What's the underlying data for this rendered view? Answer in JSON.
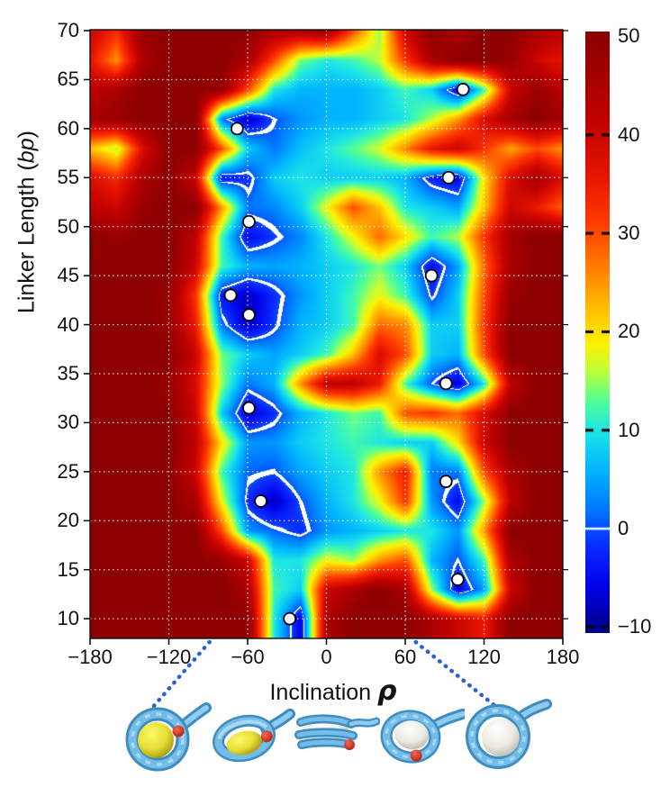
{
  "chart_data": {
    "type": "heatmap",
    "title": "",
    "xlabel": {
      "text": "Inclination ",
      "symbol": "ρ"
    },
    "ylabel": {
      "prefix": "Linker Length (",
      "italic": "bp",
      "suffix": ")"
    },
    "x": {
      "min": -180,
      "max": 180,
      "ticks": [
        -180,
        -120,
        -60,
        0,
        60,
        120,
        180
      ],
      "gridlines": [
        -120,
        -60,
        0,
        60,
        120
      ]
    },
    "y": {
      "min": 8,
      "max": 70.1,
      "ticks": [
        70,
        65,
        60,
        55,
        50,
        45,
        40,
        35,
        30,
        25,
        20,
        15,
        10
      ],
      "gridlines": [
        65,
        60,
        55,
        50,
        45,
        40,
        35,
        30,
        25,
        20,
        15,
        10
      ]
    },
    "grid_style": "white-dotted",
    "colorbar": {
      "min": -10,
      "max": 50,
      "ticks": [
        50,
        40,
        30,
        20,
        10,
        0,
        -10
      ],
      "zero_tick_style": "white-solid-line",
      "tick_style": "black-dashed"
    },
    "contour_level": 0,
    "contour_color": "#ffffff",
    "colormap_anchors": [
      [
        -10,
        0,
        0,
        140
      ],
      [
        -6,
        0,
        0,
        230
      ],
      [
        -2,
        10,
        40,
        255
      ],
      [
        2,
        0,
        120,
        255
      ],
      [
        6,
        0,
        180,
        255
      ],
      [
        10,
        30,
        230,
        230
      ],
      [
        13,
        80,
        255,
        150
      ],
      [
        16,
        190,
        255,
        60
      ],
      [
        19,
        255,
        240,
        0
      ],
      [
        23,
        255,
        180,
        0
      ],
      [
        27,
        255,
        120,
        0
      ],
      [
        31,
        255,
        60,
        0
      ],
      [
        36,
        230,
        20,
        0
      ],
      [
        42,
        190,
        0,
        0
      ],
      [
        50,
        140,
        0,
        0
      ]
    ],
    "grid": {
      "rho": [
        -180,
        -160,
        -140,
        -120,
        -100,
        -80,
        -60,
        -40,
        -20,
        0,
        20,
        40,
        60,
        80,
        100,
        120,
        140,
        160,
        180
      ],
      "linker": [
        70,
        67,
        64,
        61,
        58,
        55,
        52,
        49,
        46,
        43,
        40,
        37,
        34,
        31,
        28,
        25,
        22,
        19,
        16,
        13,
        10
      ],
      "values": [
        [
          40,
          33,
          48,
          50,
          50,
          50,
          50,
          45,
          45,
          48,
          30,
          15,
          40,
          50,
          45,
          50,
          50,
          45,
          42
        ],
        [
          36,
          25,
          45,
          50,
          50,
          50,
          45,
          30,
          14,
          10,
          12,
          16,
          32,
          45,
          50,
          50,
          48,
          40,
          36
        ],
        [
          42,
          45,
          50,
          50,
          50,
          48,
          30,
          10,
          6,
          6,
          6,
          8,
          12,
          8,
          -6,
          12,
          40,
          48,
          42
        ],
        [
          46,
          48,
          50,
          50,
          50,
          2,
          -8,
          0,
          4,
          6,
          6,
          8,
          10,
          16,
          25,
          38,
          46,
          50,
          46
        ],
        [
          22,
          16,
          38,
          50,
          50,
          30,
          8,
          2,
          7,
          10,
          13,
          17,
          26,
          36,
          40,
          32,
          24,
          30,
          25
        ],
        [
          38,
          33,
          45,
          50,
          40,
          -4,
          -2,
          8,
          10,
          8,
          8,
          8,
          6,
          -3,
          -6,
          20,
          38,
          46,
          38
        ],
        [
          42,
          40,
          48,
          50,
          50,
          25,
          2,
          3,
          8,
          18,
          30,
          22,
          10,
          8,
          5,
          22,
          40,
          35,
          28
        ],
        [
          50,
          48,
          50,
          50,
          42,
          12,
          -5,
          -1,
          3,
          10,
          18,
          28,
          20,
          12,
          16,
          32,
          46,
          50,
          50
        ],
        [
          50,
          50,
          50,
          50,
          40,
          12,
          6,
          5,
          6,
          8,
          10,
          14,
          8,
          -5,
          5,
          28,
          45,
          50,
          50
        ],
        [
          50,
          50,
          50,
          48,
          32,
          -4,
          -8,
          -2,
          4,
          8,
          12,
          18,
          12,
          -1,
          8,
          30,
          48,
          50,
          50
        ],
        [
          50,
          50,
          50,
          48,
          35,
          2,
          -8,
          -1,
          6,
          8,
          12,
          28,
          26,
          8,
          8,
          32,
          50,
          50,
          50
        ],
        [
          50,
          50,
          50,
          50,
          40,
          14,
          8,
          5,
          8,
          12,
          22,
          38,
          30,
          8,
          6,
          30,
          50,
          50,
          50
        ],
        [
          50,
          50,
          50,
          48,
          38,
          15,
          2,
          6,
          25,
          42,
          42,
          35,
          12,
          0,
          -7,
          10,
          42,
          50,
          50
        ],
        [
          50,
          50,
          50,
          50,
          40,
          8,
          -7,
          -2,
          6,
          10,
          14,
          12,
          30,
          32,
          28,
          38,
          50,
          50,
          50
        ],
        [
          50,
          50,
          50,
          50,
          42,
          20,
          4,
          4,
          8,
          10,
          12,
          10,
          8,
          8,
          20,
          40,
          50,
          50,
          50
        ],
        [
          50,
          50,
          50,
          50,
          40,
          12,
          1,
          0,
          5,
          8,
          10,
          25,
          35,
          2,
          2,
          30,
          45,
          50,
          50
        ],
        [
          50,
          50,
          50,
          50,
          45,
          18,
          -2,
          -8,
          0,
          6,
          10,
          18,
          32,
          4,
          -5,
          15,
          42,
          50,
          50
        ],
        [
          50,
          50,
          50,
          50,
          50,
          30,
          4,
          1,
          -2,
          4,
          6,
          8,
          10,
          10,
          4,
          25,
          50,
          50,
          50
        ],
        [
          50,
          50,
          50,
          50,
          50,
          48,
          40,
          10,
          10,
          18,
          15,
          25,
          30,
          6,
          0,
          12,
          45,
          50,
          50
        ],
        [
          50,
          50,
          50,
          50,
          50,
          50,
          45,
          12,
          8,
          40,
          45,
          50,
          45,
          15,
          -6,
          5,
          40,
          50,
          50
        ],
        [
          50,
          50,
          50,
          50,
          50,
          50,
          50,
          10,
          -6,
          45,
          50,
          50,
          50,
          45,
          40,
          35,
          50,
          50,
          50
        ]
      ]
    },
    "minima_markers": [
      {
        "rho": 104,
        "linker": 64
      },
      {
        "rho": -68,
        "linker": 60
      },
      {
        "rho": 93,
        "linker": 55
      },
      {
        "rho": -59,
        "linker": 50.5
      },
      {
        "rho": 80,
        "linker": 45
      },
      {
        "rho": -73,
        "linker": 43
      },
      {
        "rho": -59,
        "linker": 41
      },
      {
        "rho": 91,
        "linker": 34
      },
      {
        "rho": -59,
        "linker": 31.5
      },
      {
        "rho": 91,
        "linker": 24
      },
      {
        "rho": -50,
        "linker": 22
      },
      {
        "rho": 100,
        "linker": 14
      },
      {
        "rho": -28,
        "linker": 10
      }
    ],
    "marker_style": {
      "fill": "#ffffff",
      "stroke": "#000000"
    }
  },
  "annotations": {
    "connector_color": "#2b5fd9",
    "connectors": [
      {
        "from_rho": -89,
        "to_structure": 0
      },
      {
        "from_rho": 68,
        "to_structure": 4
      }
    ],
    "structures": [
      {
        "view": "face-on",
        "core": "yellow"
      },
      {
        "view": "tilted",
        "core": "yellow"
      },
      {
        "view": "edge-on",
        "core": "white"
      },
      {
        "view": "tilted",
        "core": "white"
      },
      {
        "view": "face-on",
        "core": "white"
      }
    ]
  }
}
